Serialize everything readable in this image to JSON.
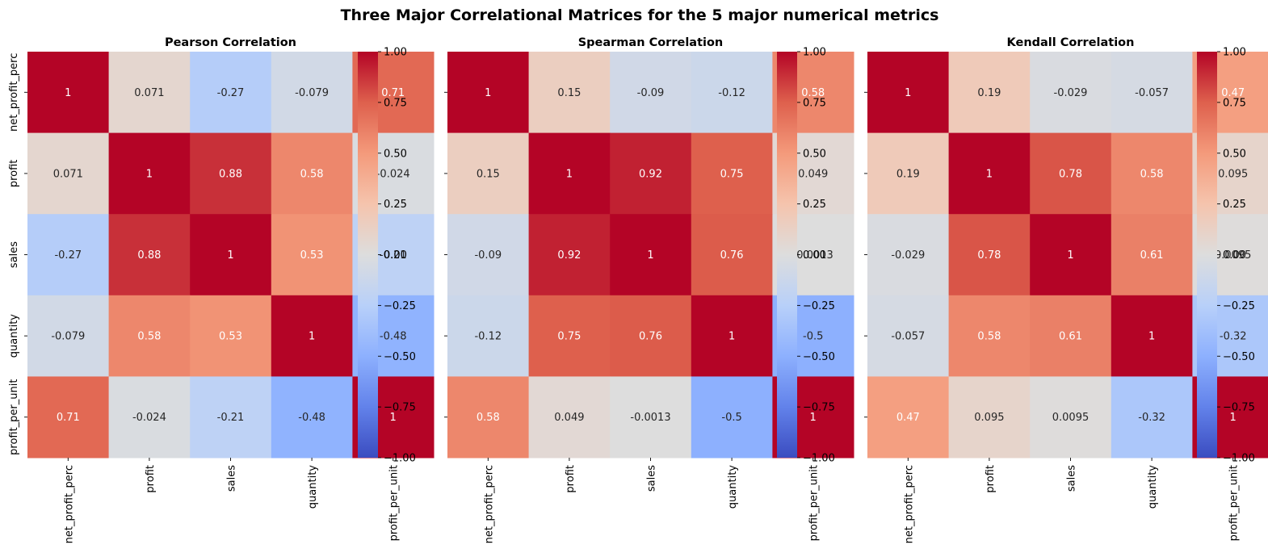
{
  "figure": {
    "title": "Three Major Correlational Matrices for the 5 major numerical metrics"
  },
  "colormap": {
    "name": "coolwarm",
    "low": "#3b4cc0",
    "mid": "#dddddd",
    "high": "#b40426"
  },
  "chart_data": [
    {
      "type": "heatmap",
      "title": "Pearson Correlation",
      "x_labels": [
        "net_profit_perc",
        "profit",
        "sales",
        "quantity",
        "profit_per_unit"
      ],
      "y_labels": [
        "net_profit_perc",
        "profit",
        "sales",
        "quantity",
        "profit_per_unit"
      ],
      "show_y_labels": true,
      "matrix": [
        [
          1,
          0.071,
          -0.27,
          -0.079,
          0.71
        ],
        [
          0.071,
          1,
          0.88,
          0.58,
          -0.024
        ],
        [
          -0.27,
          0.88,
          1,
          0.53,
          -0.21
        ],
        [
          -0.079,
          0.58,
          0.53,
          1,
          -0.48
        ],
        [
          0.71,
          -0.024,
          -0.21,
          -0.48,
          1
        ]
      ],
      "annotations": [
        [
          "1",
          "0.071",
          "-0.27",
          "-0.079",
          "0.71"
        ],
        [
          "0.071",
          "1",
          "0.88",
          "0.58",
          "-0.024"
        ],
        [
          "-0.27",
          "0.88",
          "1",
          "0.53",
          "-0.21"
        ],
        [
          "-0.079",
          "0.58",
          "0.53",
          "1",
          "-0.48"
        ],
        [
          "0.71",
          "-0.024",
          "-0.21",
          "-0.48",
          "1"
        ]
      ],
      "colorbar": {
        "range": [
          -1,
          1
        ],
        "ticks": [
          1.0,
          0.75,
          0.5,
          0.25,
          0.0,
          -0.25,
          -0.5,
          -0.75,
          -1.0
        ],
        "tick_labels": [
          "1.00",
          "0.75",
          "0.50",
          "0.25",
          "0.00",
          "−0.25",
          "−0.50",
          "−0.75",
          "−1.00"
        ]
      }
    },
    {
      "type": "heatmap",
      "title": "Spearman Correlation",
      "x_labels": [
        "net_profit_perc",
        "profit",
        "sales",
        "quantity",
        "profit_per_unit"
      ],
      "y_labels": [
        "net_profit_perc",
        "profit",
        "sales",
        "quantity",
        "profit_per_unit"
      ],
      "show_y_labels": false,
      "matrix": [
        [
          1,
          0.15,
          -0.09,
          -0.12,
          0.58
        ],
        [
          0.15,
          1,
          0.92,
          0.75,
          0.049
        ],
        [
          -0.09,
          0.92,
          1,
          0.76,
          -0.0013
        ],
        [
          -0.12,
          0.75,
          0.76,
          1,
          -0.5
        ],
        [
          0.58,
          0.049,
          -0.0013,
          -0.5,
          1
        ]
      ],
      "annotations": [
        [
          "1",
          "0.15",
          "-0.09",
          "-0.12",
          "0.58"
        ],
        [
          "0.15",
          "1",
          "0.92",
          "0.75",
          "0.049"
        ],
        [
          "-0.09",
          "0.92",
          "1",
          "0.76",
          "-0.0013"
        ],
        [
          "-0.12",
          "0.75",
          "0.76",
          "1",
          "-0.5"
        ],
        [
          "0.58",
          "0.049",
          "-0.0013",
          "-0.5",
          "1"
        ]
      ],
      "colorbar": {
        "range": [
          -1,
          1
        ],
        "ticks": [
          1.0,
          0.75,
          0.5,
          0.25,
          0.0,
          -0.25,
          -0.5,
          -0.75,
          -1.0
        ],
        "tick_labels": [
          "1.00",
          "0.75",
          "0.50",
          "0.25",
          "0.00",
          "−0.25",
          "−0.50",
          "−0.75",
          "−1.00"
        ]
      }
    },
    {
      "type": "heatmap",
      "title": "Kendall Correlation",
      "x_labels": [
        "net_profit_perc",
        "profit",
        "sales",
        "quantity",
        "profit_per_unit"
      ],
      "y_labels": [
        "net_profit_perc",
        "profit",
        "sales",
        "quantity",
        "profit_per_unit"
      ],
      "show_y_labels": false,
      "matrix": [
        [
          1,
          0.19,
          -0.029,
          -0.057,
          0.47
        ],
        [
          0.19,
          1,
          0.78,
          0.58,
          0.095
        ],
        [
          -0.029,
          0.78,
          1,
          0.61,
          0.0095
        ],
        [
          -0.057,
          0.58,
          0.61,
          1,
          -0.32
        ],
        [
          0.47,
          0.095,
          0.0095,
          -0.32,
          1
        ]
      ],
      "annotations": [
        [
          "1",
          "0.19",
          "-0.029",
          "-0.057",
          "0.47"
        ],
        [
          "0.19",
          "1",
          "0.78",
          "0.58",
          "0.095"
        ],
        [
          "-0.029",
          "0.78",
          "1",
          "0.61",
          "0.0095"
        ],
        [
          "-0.057",
          "0.58",
          "0.61",
          "1",
          "-0.32"
        ],
        [
          "0.47",
          "0.095",
          "0.0095",
          "-0.32",
          "1"
        ]
      ],
      "colorbar": {
        "range": [
          -1,
          1
        ],
        "ticks": [
          1.0,
          0.75,
          0.5,
          0.25,
          0.0,
          -0.25,
          -0.5,
          -0.75,
          -1.0
        ],
        "tick_labels": [
          "1.00",
          "0.75",
          "0.50",
          "0.25",
          "0.00",
          "−0.25",
          "−0.50",
          "−0.75",
          "−1.00"
        ]
      }
    }
  ]
}
